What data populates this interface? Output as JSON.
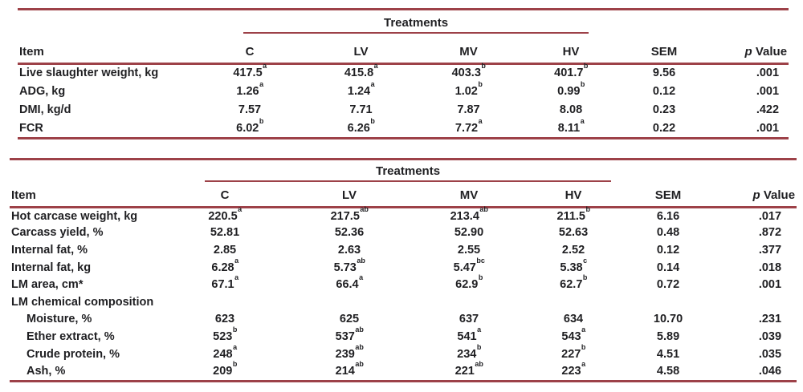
{
  "colors": {
    "rule": "#9d4148",
    "text": "#1f1f22",
    "background": "#ffffff"
  },
  "tables": [
    {
      "name": "growth-performance-table",
      "treatments_label": "Treatments",
      "headers": {
        "item": "Item",
        "c": "C",
        "lv": "LV",
        "mv": "MV",
        "hv": "HV",
        "sem": "SEM",
        "p": "p",
        "p_rest": "Value"
      },
      "rows": [
        {
          "item": "Live slaughter weight, kg",
          "indent": false,
          "cells": [
            "417.5^a",
            "415.8^a",
            "403.3^b",
            "401.7^b",
            "9.56",
            ".001"
          ]
        },
        {
          "item": "ADG, kg",
          "indent": false,
          "cells": [
            "1.26^a",
            "1.24^a",
            "1.02^b",
            "0.99^b",
            "0.12",
            ".001"
          ]
        },
        {
          "item": "DMI, kg/d",
          "indent": false,
          "cells": [
            "7.57",
            "7.71",
            "7.87",
            "8.08",
            "0.23",
            ".422"
          ]
        },
        {
          "item": "FCR",
          "indent": false,
          "cells": [
            "6.02^b",
            "6.26^b",
            "7.72^a",
            "8.11^a",
            "0.22",
            ".001"
          ]
        }
      ]
    },
    {
      "name": "carcass-traits-table",
      "treatments_label": "Treatments",
      "headers": {
        "item": "Item",
        "c": "C",
        "lv": "LV",
        "mv": "MV",
        "hv": "HV",
        "sem": "SEM",
        "p": "p",
        "p_rest": "Value"
      },
      "rows": [
        {
          "item": "Hot carcase weight, kg",
          "indent": false,
          "cells": [
            "220.5^a",
            "217.5^ab",
            "213.4^ab",
            "211.5^b",
            "6.16",
            ".017"
          ]
        },
        {
          "item": "Carcass yield, %",
          "indent": false,
          "cells": [
            "52.81",
            "52.36",
            "52.90",
            "52.63",
            "0.48",
            ".872"
          ]
        },
        {
          "item": "Internal fat, %",
          "indent": false,
          "cells": [
            "2.85",
            "2.63",
            "2.55",
            "2.52",
            "0.12",
            ".377"
          ]
        },
        {
          "item": "Internal fat, kg",
          "indent": false,
          "cells": [
            "6.28^a",
            "5.73^ab",
            "5.47^bc",
            "5.38^c",
            "0.14",
            ".018"
          ]
        },
        {
          "item": "LM area, cm*",
          "indent": false,
          "cells": [
            "67.1^a",
            "66.4^a",
            "62.9^b",
            "62.7^b",
            "0.72",
            ".001"
          ]
        },
        {
          "item": "LM chemical composition",
          "indent": false,
          "cells": [
            "",
            "",
            "",
            "",
            "",
            ""
          ]
        },
        {
          "item": "Moisture, %",
          "indent": true,
          "cells": [
            "623",
            "625",
            "637",
            "634",
            "10.70",
            ".231"
          ]
        },
        {
          "item": "Ether extract, %",
          "indent": true,
          "cells": [
            "523^b",
            "537^ab",
            "541^a",
            "543^a",
            "5.89",
            ".039"
          ]
        },
        {
          "item": "Crude protein, %",
          "indent": true,
          "cells": [
            "248^a",
            "239^ab",
            "234^b",
            "227^b",
            "4.51",
            ".035"
          ]
        },
        {
          "item": "Ash, %",
          "indent": true,
          "cells": [
            "209^b",
            "214^ab",
            "221^ab",
            "223^a",
            "4.58",
            ".046"
          ]
        }
      ]
    }
  ]
}
